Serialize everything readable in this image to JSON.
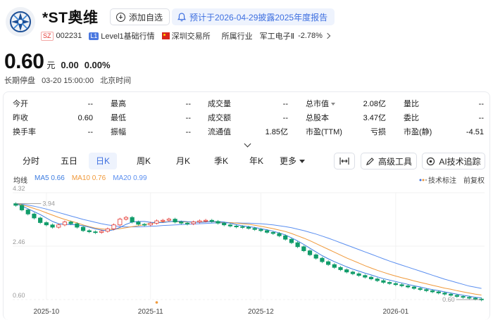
{
  "header": {
    "name": "*ST奥维",
    "watch_label": "添加自选",
    "notice": "预计于2026-04-29披露2025年度报告",
    "exchange_badge": "SZ",
    "code": "002231",
    "level_badge": "L1",
    "level_text": "Level1基础行情",
    "exchange": "深圳交易所",
    "industry_label": "所属行业",
    "industry_name": "军工电子Ⅱ",
    "industry_change": "-2.78%"
  },
  "quote": {
    "price": "0.60",
    "unit": "元",
    "change": "0.00",
    "change_pct": "0.00%",
    "status": "长期停盘",
    "time": "03-20 15:00:00",
    "timezone": "北京时间"
  },
  "stats": {
    "open": {
      "label": "今开",
      "value": "--"
    },
    "prev_close": {
      "label": "昨收",
      "value": "0.60"
    },
    "turnover": {
      "label": "换手率",
      "value": "--"
    },
    "high": {
      "label": "最高",
      "value": "--"
    },
    "low": {
      "label": "最低",
      "value": "--"
    },
    "amplitude": {
      "label": "振幅",
      "value": "--"
    },
    "volume": {
      "label": "成交量",
      "value": "--"
    },
    "amount": {
      "label": "成交额",
      "value": "--"
    },
    "float_mv": {
      "label": "流通值",
      "value": "1.85亿"
    },
    "total_mv": {
      "label": "总市值",
      "value": "2.08亿"
    },
    "total_shares": {
      "label": "总股本",
      "value": "3.47亿"
    },
    "pe_ttm": {
      "label": "市盈(TTM)",
      "value": "亏损"
    },
    "vol_ratio": {
      "label": "量比",
      "value": "--"
    },
    "committee": {
      "label": "委比",
      "value": "--"
    },
    "pe_static": {
      "label": "市盈(静)",
      "value": "-4.51"
    }
  },
  "tabs": [
    {
      "label": "分时",
      "active": false
    },
    {
      "label": "五日",
      "active": false
    },
    {
      "label": "日K",
      "active": true
    },
    {
      "label": "周K",
      "active": false
    },
    {
      "label": "月K",
      "active": false
    },
    {
      "label": "季K",
      "active": false
    },
    {
      "label": "年K",
      "active": false
    }
  ],
  "more_label": "更多",
  "tools": {
    "advanced": "高级工具",
    "ai": "AI技术追踪"
  },
  "legend": {
    "title": "均线",
    "ma5": "MA5 0.66",
    "ma10": "MA10 0.76",
    "ma20": "MA20 0.99",
    "indicator": "技术标注",
    "adjust": "前复权"
  },
  "colors": {
    "up": "#e3342f",
    "down": "#119c6a",
    "ma5": "#3c7ce0",
    "ma10": "#f0993a",
    "ma20": "#5b8ff0",
    "accent": "#3d6fe0"
  },
  "chart_data": {
    "type": "candlestick",
    "y_ticks": [
      "4.32",
      "2.46",
      "0.60"
    ],
    "ylim": [
      0.6,
      4.32
    ],
    "x_ticks": [
      "2025-10",
      "2025-11",
      "2025-12",
      "2026-01"
    ],
    "max_marker": "3.94",
    "last_marker": "0.60",
    "close": [
      3.88,
      3.72,
      3.58,
      3.44,
      3.28,
      3.2,
      3.12,
      3.2,
      3.3,
      3.24,
      3.12,
      3.0,
      2.96,
      2.94,
      2.98,
      3.06,
      3.2,
      3.4,
      3.46,
      3.3,
      3.22,
      3.2,
      3.26,
      3.34,
      3.36,
      3.4,
      3.3,
      3.26,
      3.24,
      3.3,
      3.34,
      3.36,
      3.32,
      3.26,
      3.2,
      3.16,
      3.14,
      3.12,
      3.08,
      3.04,
      3.0,
      2.94,
      2.9,
      2.82,
      2.7,
      2.58,
      2.44,
      2.3,
      2.16,
      2.04,
      1.92,
      1.82,
      1.72,
      1.64,
      1.56,
      1.5,
      1.44,
      1.38,
      1.32,
      1.26,
      1.2,
      1.16,
      1.12,
      1.08,
      1.04,
      0.99,
      0.95,
      0.91,
      0.87,
      0.83,
      0.79,
      0.75,
      0.71,
      0.68,
      0.65,
      0.62,
      0.6
    ],
    "open": [
      3.94,
      3.88,
      3.72,
      3.58,
      3.44,
      3.28,
      3.2,
      3.12,
      3.2,
      3.3,
      3.24,
      3.12,
      3.0,
      2.96,
      2.94,
      2.98,
      3.06,
      3.2,
      3.4,
      3.46,
      3.3,
      3.22,
      3.2,
      3.26,
      3.34,
      3.36,
      3.4,
      3.3,
      3.26,
      3.24,
      3.3,
      3.34,
      3.36,
      3.32,
      3.26,
      3.2,
      3.16,
      3.14,
      3.12,
      3.08,
      3.04,
      3.0,
      2.94,
      2.9,
      2.82,
      2.7,
      2.58,
      2.44,
      2.3,
      2.16,
      2.04,
      1.92,
      1.82,
      1.72,
      1.64,
      1.56,
      1.5,
      1.44,
      1.38,
      1.32,
      1.26,
      1.2,
      1.16,
      1.12,
      1.08,
      1.04,
      0.99,
      0.95,
      0.91,
      0.87,
      0.83,
      0.79,
      0.75,
      0.71,
      0.68,
      0.65,
      0.62
    ],
    "ma5": [
      3.94,
      3.86,
      3.76,
      3.66,
      3.56,
      3.44,
      3.32,
      3.24,
      3.22,
      3.21,
      3.2,
      3.17,
      3.12,
      3.06,
      3.02,
      2.99,
      3.03,
      3.11,
      3.22,
      3.3,
      3.32,
      3.32,
      3.29,
      3.28,
      3.28,
      3.31,
      3.33,
      3.33,
      3.31,
      3.3,
      3.29,
      3.3,
      3.31,
      3.32,
      3.3,
      3.26,
      3.21,
      3.17,
      3.14,
      3.11,
      3.07,
      3.03,
      2.98,
      2.92,
      2.85,
      2.75,
      2.64,
      2.52,
      2.39,
      2.26,
      2.13,
      2.02,
      1.92,
      1.83,
      1.74,
      1.66,
      1.59,
      1.52,
      1.46,
      1.39,
      1.33,
      1.28,
      1.23,
      1.18,
      1.13,
      1.08,
      1.04,
      0.99,
      0.95,
      0.91,
      0.87,
      0.83,
      0.79,
      0.75,
      0.72,
      0.68,
      0.66
    ],
    "ma10": [
      3.94,
      3.9,
      3.84,
      3.77,
      3.7,
      3.62,
      3.54,
      3.46,
      3.39,
      3.33,
      3.27,
      3.2,
      3.14,
      3.09,
      3.06,
      3.04,
      3.05,
      3.07,
      3.1,
      3.14,
      3.17,
      3.21,
      3.25,
      3.28,
      3.3,
      3.31,
      3.32,
      3.31,
      3.3,
      3.3,
      3.3,
      3.31,
      3.31,
      3.3,
      3.29,
      3.28,
      3.26,
      3.24,
      3.22,
      3.19,
      3.15,
      3.11,
      3.07,
      3.02,
      2.97,
      2.9,
      2.82,
      2.74,
      2.65,
      2.55,
      2.45,
      2.35,
      2.25,
      2.15,
      2.05,
      1.96,
      1.87,
      1.78,
      1.7,
      1.62,
      1.55,
      1.48,
      1.42,
      1.36,
      1.31,
      1.25,
      1.2,
      1.15,
      1.1,
      1.05,
      1.0,
      0.96,
      0.91,
      0.87,
      0.83,
      0.79,
      0.76
    ],
    "ma20": [
      3.94,
      3.92,
      3.89,
      3.85,
      3.8,
      3.75,
      3.69,
      3.63,
      3.57,
      3.51,
      3.45,
      3.39,
      3.34,
      3.29,
      3.24,
      3.2,
      3.17,
      3.14,
      3.13,
      3.13,
      3.13,
      3.14,
      3.15,
      3.16,
      3.18,
      3.19,
      3.2,
      3.21,
      3.22,
      3.23,
      3.24,
      3.25,
      3.26,
      3.27,
      3.27,
      3.27,
      3.27,
      3.26,
      3.26,
      3.25,
      3.24,
      3.22,
      3.2,
      3.17,
      3.14,
      3.1,
      3.05,
      3.0,
      2.94,
      2.88,
      2.81,
      2.74,
      2.66,
      2.58,
      2.5,
      2.42,
      2.34,
      2.26,
      2.18,
      2.1,
      2.02,
      1.94,
      1.87,
      1.8,
      1.73,
      1.66,
      1.59,
      1.52,
      1.45,
      1.38,
      1.31,
      1.25,
      1.19,
      1.13,
      1.07,
      1.03,
      0.99
    ]
  }
}
